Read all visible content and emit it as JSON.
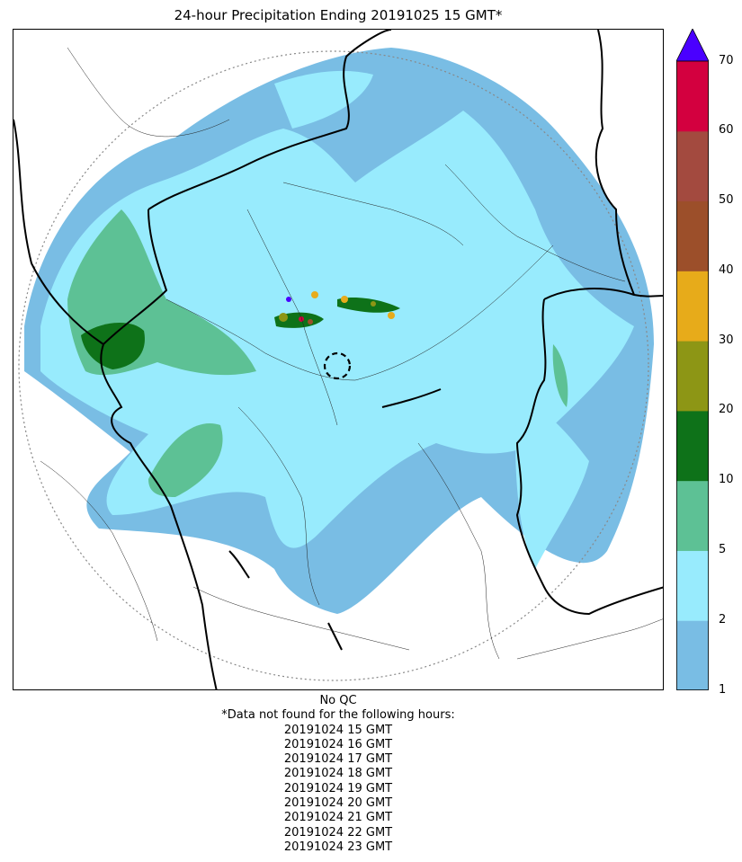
{
  "title": "24-hour Precipitation Ending 20191025 15 GMT*",
  "colorbar": {
    "ticks": [
      "1",
      "2",
      "5",
      "10",
      "20",
      "30",
      "40",
      "50",
      "60",
      "70"
    ],
    "colors": [
      "#79bde4",
      "#98ebfd",
      "#5dc195",
      "#0e7219",
      "#8d9615",
      "#e7ab1a",
      "#9c4f2a",
      "#a34a3f",
      "#d3003f"
    ],
    "extend_color": "#4a00ff"
  },
  "notes": {
    "qc": "No QC",
    "missing_header": "*Data not found for the following hours:",
    "missing_hours": [
      "20191024 15 GMT",
      "20191024 16 GMT",
      "20191024 17 GMT",
      "20191024 18 GMT",
      "20191024 19 GMT",
      "20191024 20 GMT",
      "20191024 21 GMT",
      "20191024 22 GMT",
      "20191024 23 GMT"
    ]
  }
}
